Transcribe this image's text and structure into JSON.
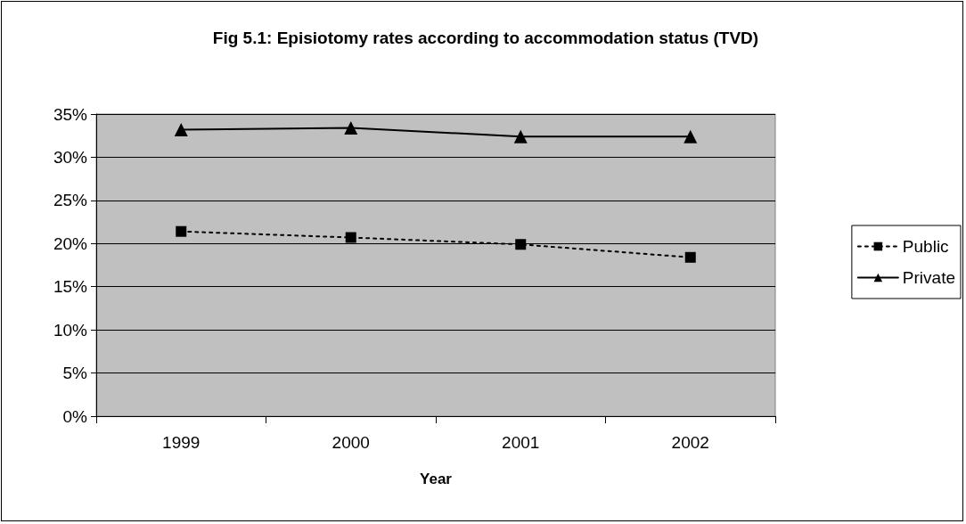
{
  "chart_data": {
    "type": "line",
    "title": "Fig 5.1: Episiotomy rates according to accommodation status (TVD)",
    "xlabel": "Year",
    "categories": [
      "1999",
      "2000",
      "2001",
      "2002"
    ],
    "series": [
      {
        "name": "Public",
        "color": "#000000",
        "values": [
          21.4,
          20.7,
          19.9,
          18.4
        ],
        "marker": "square",
        "line_style": "dotted"
      },
      {
        "name": "Private",
        "color": "#000000",
        "values": [
          33.2,
          33.4,
          32.4,
          32.4
        ],
        "marker": "triangle",
        "line_style": "solid"
      }
    ],
    "ylim": [
      0,
      35
    ],
    "yticks": [
      {
        "value": 0,
        "label": "0%"
      },
      {
        "value": 5,
        "label": "5%"
      },
      {
        "value": 10,
        "label": "10%"
      },
      {
        "value": 15,
        "label": "15%"
      },
      {
        "value": 20,
        "label": "20%"
      },
      {
        "value": 25,
        "label": "25%"
      },
      {
        "value": 30,
        "label": "30%"
      },
      {
        "value": 35,
        "label": "35%"
      }
    ],
    "grid": "y",
    "legend": "right"
  }
}
